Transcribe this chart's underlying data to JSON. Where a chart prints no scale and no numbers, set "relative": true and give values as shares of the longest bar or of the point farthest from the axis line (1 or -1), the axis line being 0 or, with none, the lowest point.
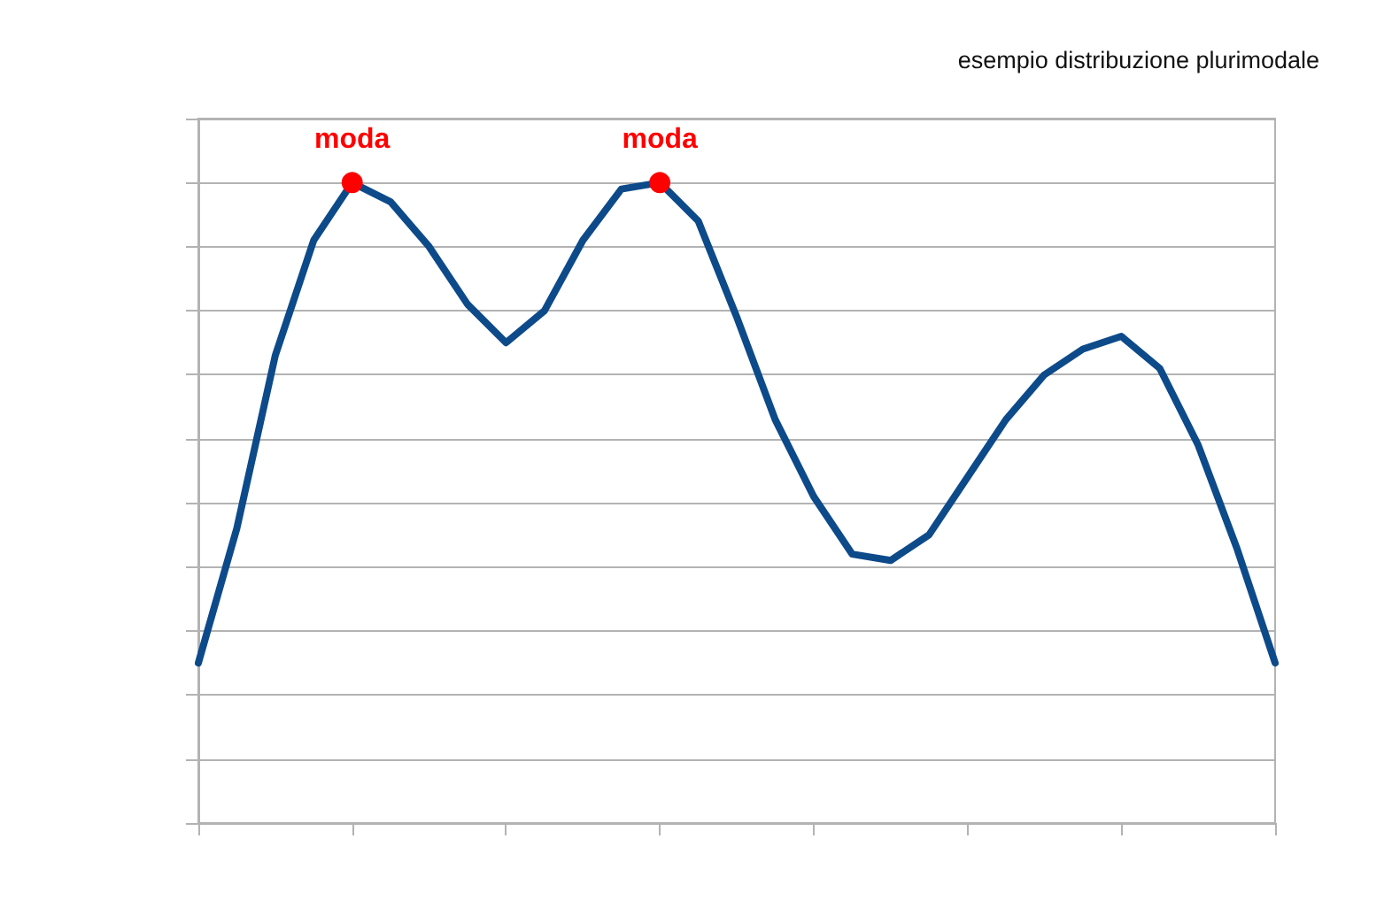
{
  "chart_data": {
    "type": "line",
    "title": "esempio distribuzione plurimodale",
    "relative": true,
    "categories": [
      null,
      null,
      null,
      null,
      null,
      null,
      null,
      null,
      null,
      null,
      null,
      null,
      null,
      null,
      null,
      null,
      null,
      null,
      null,
      null,
      null,
      null,
      null,
      null,
      null,
      null,
      null,
      null,
      null
    ],
    "series": [
      {
        "color": "#0d4a8a",
        "values": [
          0.25,
          0.46,
          0.73,
          0.91,
          1,
          0.97,
          0.9,
          0.81,
          0.75,
          0.8,
          0.91,
          0.99,
          1,
          0.94,
          0.79,
          0.63,
          0.51,
          0.42,
          0.41,
          0.45,
          0.54,
          0.63,
          0.7,
          0.74,
          0.76,
          0.71,
          0.59,
          0.43,
          0.25
        ]
      }
    ],
    "annotations": [
      "moda",
      "moda"
    ],
    "grid": "y",
    "marker": "none",
    "line_style": "solid"
  }
}
